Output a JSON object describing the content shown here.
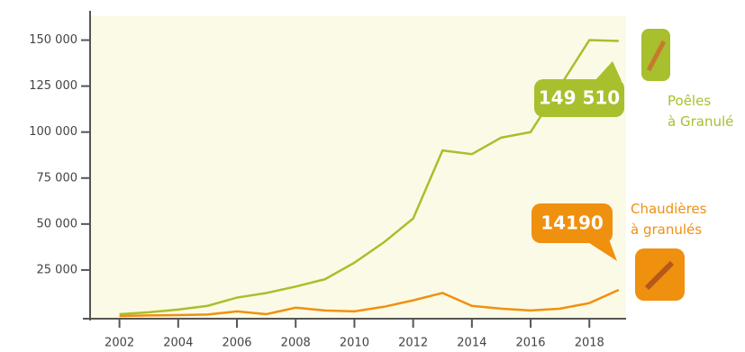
{
  "chart_data": {
    "type": "line",
    "x": [
      2002,
      2003,
      2004,
      2005,
      2006,
      2007,
      2008,
      2009,
      2010,
      2011,
      2012,
      2013,
      2014,
      2015,
      2016,
      2017,
      2018,
      2019
    ],
    "series": [
      {
        "name": "Poêles à Granulé",
        "color": "#a8bf2e",
        "values": [
          1000,
          2000,
          3500,
          5500,
          10000,
          12500,
          16000,
          20000,
          29000,
          40000,
          53000,
          90000,
          88000,
          97000,
          100000,
          125000,
          150000,
          149510
        ],
        "value_labels": [
          null,
          null,
          null,
          null,
          null,
          null,
          null,
          null,
          null,
          null,
          null,
          null,
          null,
          null,
          null,
          null,
          null,
          "149 510"
        ]
      },
      {
        "name": "Chaudières à granulés",
        "color": "#f0900f",
        "values": [
          0,
          300,
          500,
          800,
          2500,
          1000,
          4500,
          3000,
          2500,
          5000,
          8500,
          12500,
          5500,
          4000,
          3000,
          4000,
          7000,
          14190
        ],
        "value_labels": [
          null,
          null,
          null,
          null,
          null,
          null,
          null,
          null,
          null,
          null,
          null,
          null,
          null,
          null,
          null,
          null,
          null,
          "14190"
        ]
      }
    ],
    "xlim": [
      2001,
      2019.25
    ],
    "xticks": [
      2002,
      2004,
      2006,
      2008,
      2010,
      2012,
      2014,
      2016,
      2018
    ],
    "ylim": [
      0,
      163000
    ],
    "yticks": [
      {
        "value": 25000,
        "label": "25 000"
      },
      {
        "value": 50000,
        "label": "50 000"
      },
      {
        "value": 75000,
        "label": "75 000"
      },
      {
        "value": 100000,
        "label": "100 000"
      },
      {
        "value": 125000,
        "label": "125 000"
      },
      {
        "value": 150000,
        "label": "150 000"
      }
    ]
  }
}
